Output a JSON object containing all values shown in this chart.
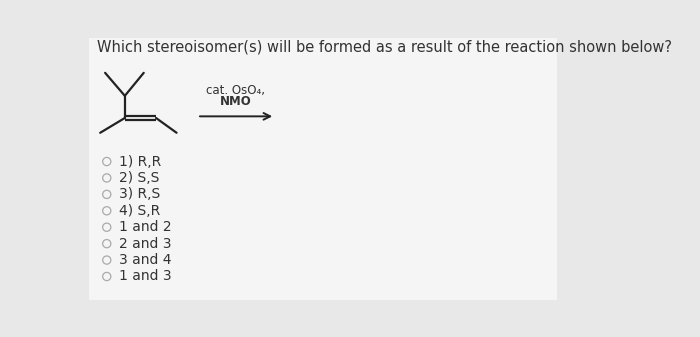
{
  "title": "Which stereoisomer(s) will be formed as a result of the reaction shown below?",
  "title_fontsize": 10.5,
  "background_color": "#e8e8e8",
  "panel_color": "#f5f5f5",
  "reagent_line1": "cat. OsO₄,",
  "reagent_line2": "NMO",
  "options": [
    "1) R,R",
    "2) S,S",
    "3) R,S",
    "4) S,R",
    "1 and 2",
    "2 and 3",
    "3 and 4",
    "1 and 3"
  ],
  "text_color": "#333333",
  "circle_color": "#aaaaaa",
  "mol_color": "#222222",
  "mol_lw": 1.6,
  "arrow_color": "#222222"
}
